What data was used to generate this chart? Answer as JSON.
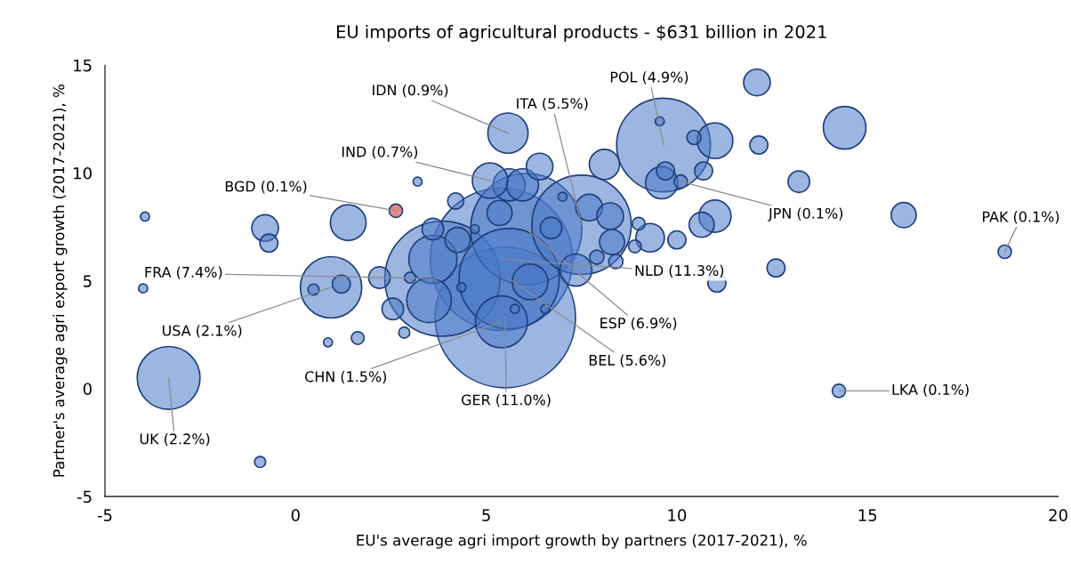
{
  "chart_data": {
    "type": "bubble",
    "title": "EU imports of agricultural products - $631 billion in 2021",
    "xlabel": "EU's average agri import growth by partners (2017-2021), %",
    "ylabel": "Partner's average agri export growth (2017-2021), %",
    "xlim": [
      -5,
      20
    ],
    "xticks": [
      -5,
      0,
      5,
      10,
      15,
      20
    ],
    "ylim": [
      -5,
      15
    ],
    "yticks": [
      -5,
      0,
      5,
      10,
      15
    ],
    "grid": false,
    "legend": false,
    "series": [
      {
        "color": "#4a78c8",
        "x": [
          5.4,
          5.5,
          3.85,
          6.05,
          5.6,
          7.5,
          9.65,
          5.4,
          3.6,
          0.93,
          -3.33,
          3.5,
          6.15,
          1.38,
          14.4,
          5.57,
          7.35,
          5.6,
          5.95,
          11.0,
          8.1,
          5.1,
          9.6,
          11.0,
          6.4,
          15.95,
          12.1,
          9.3,
          10.65,
          5.35,
          7.7,
          8.25,
          8.3,
          4.25,
          -0.8,
          10.45,
          13.2,
          6.7,
          3.6,
          2.2,
          2.55,
          1.2,
          12.6,
          11.05,
          10.0,
          -0.7,
          9.7,
          4.2,
          7.9,
          8.4,
          1.63,
          9.0,
          8.9,
          2.85,
          3.0,
          0.47,
          12.15,
          10.7,
          9.55,
          10.1,
          18.6,
          14.25,
          3.2,
          4.7,
          4.35,
          5.75,
          6.55,
          7.0,
          -3.95,
          -4.0,
          0.85,
          -0.93
        ],
        "values": [
          6.0,
          3.3,
          5.1,
          7.4,
          5.1,
          7.6,
          11.3,
          3.1,
          6.0,
          4.7,
          0.5,
          4.1,
          4.95,
          7.7,
          12.1,
          11.85,
          5.5,
          9.45,
          9.45,
          11.5,
          10.4,
          9.65,
          9.55,
          8.0,
          10.3,
          8.05,
          14.2,
          7.0,
          7.6,
          8.15,
          8.4,
          8.0,
          6.8,
          6.9,
          7.45,
          11.65,
          9.6,
          7.45,
          7.4,
          5.15,
          3.7,
          4.85,
          5.6,
          4.9,
          6.9,
          6.75,
          10.1,
          8.7,
          6.1,
          5.9,
          2.35,
          7.65,
          6.6,
          2.6,
          5.15,
          4.6,
          11.3,
          10.1,
          12.4,
          9.6,
          6.35,
          -0.1,
          9.6,
          7.4,
          4.7,
          3.7,
          3.7,
          8.9,
          7.98,
          4.65,
          2.15,
          -3.4
        ],
        "sizes": [
          1,
          0.973,
          0.655,
          0.611,
          0.496,
          0.487,
          0.434,
          0.133,
          0.114,
          0.186,
          0.195,
          0.098,
          0.063,
          0.063,
          0.09,
          0.08,
          0.051,
          0.051,
          0.051,
          0.063,
          0.045,
          0.062,
          0.051,
          0.051,
          0.035,
          0.031,
          0.035,
          0.04,
          0.031,
          0.031,
          0.035,
          0.035,
          0.031,
          0.031,
          0.035,
          0.01,
          0.023,
          0.023,
          0.023,
          0.023,
          0.023,
          0.016,
          0.016,
          0.016,
          0.016,
          0.016,
          0.016,
          0.013,
          0.01,
          0.01,
          0.008,
          0.008,
          0.008,
          0.006,
          0.006,
          0.006,
          0.016,
          0.016,
          0.004,
          0.0088,
          0.0088,
          0.0088,
          0.004,
          0.004,
          0.004,
          0.004,
          0.004,
          0.004,
          0.004,
          0.004,
          0.004,
          0.006
        ]
      },
      {
        "color": "#d42a2a",
        "x": [
          2.63
        ],
        "values": [
          8.25
        ],
        "sizes": [
          0.0088
        ]
      }
    ],
    "annotations": [
      {
        "text": "IDN (0.9%)",
        "x": 5.57,
        "y": 11.85
      },
      {
        "text": "ITA (5.5%)",
        "x": 7.5,
        "y": 7.6
      },
      {
        "text": "POL (4.9%)",
        "x": 9.65,
        "y": 11.3
      },
      {
        "text": "IND (0.7%)",
        "x": 5.1,
        "y": 9.65
      },
      {
        "text": "BGD (0.1%)",
        "x": 2.63,
        "y": 8.25
      },
      {
        "text": "JPN (0.1%)",
        "x": 10.1,
        "y": 9.6
      },
      {
        "text": "PAK (0.1%)",
        "x": 18.6,
        "y": 6.35
      },
      {
        "text": "LKA (0.1%)",
        "x": 14.25,
        "y": -0.1
      },
      {
        "text": "NLD (11.3%)",
        "x": 5.4,
        "y": 6.0
      },
      {
        "text": "FRA (7.4%)",
        "x": 3.85,
        "y": 5.1
      },
      {
        "text": "ESP (6.9%)",
        "x": 6.05,
        "y": 7.4
      },
      {
        "text": "USA (2.1%)",
        "x": 0.93,
        "y": 4.7
      },
      {
        "text": "BEL (5.6%)",
        "x": 5.6,
        "y": 5.1
      },
      {
        "text": "CHN (1.5%)",
        "x": 5.4,
        "y": 3.1
      },
      {
        "text": "GER (11.0%)",
        "x": 5.5,
        "y": 3.3
      },
      {
        "text": "UK (2.2%)",
        "x": -3.33,
        "y": 0.5
      }
    ]
  }
}
